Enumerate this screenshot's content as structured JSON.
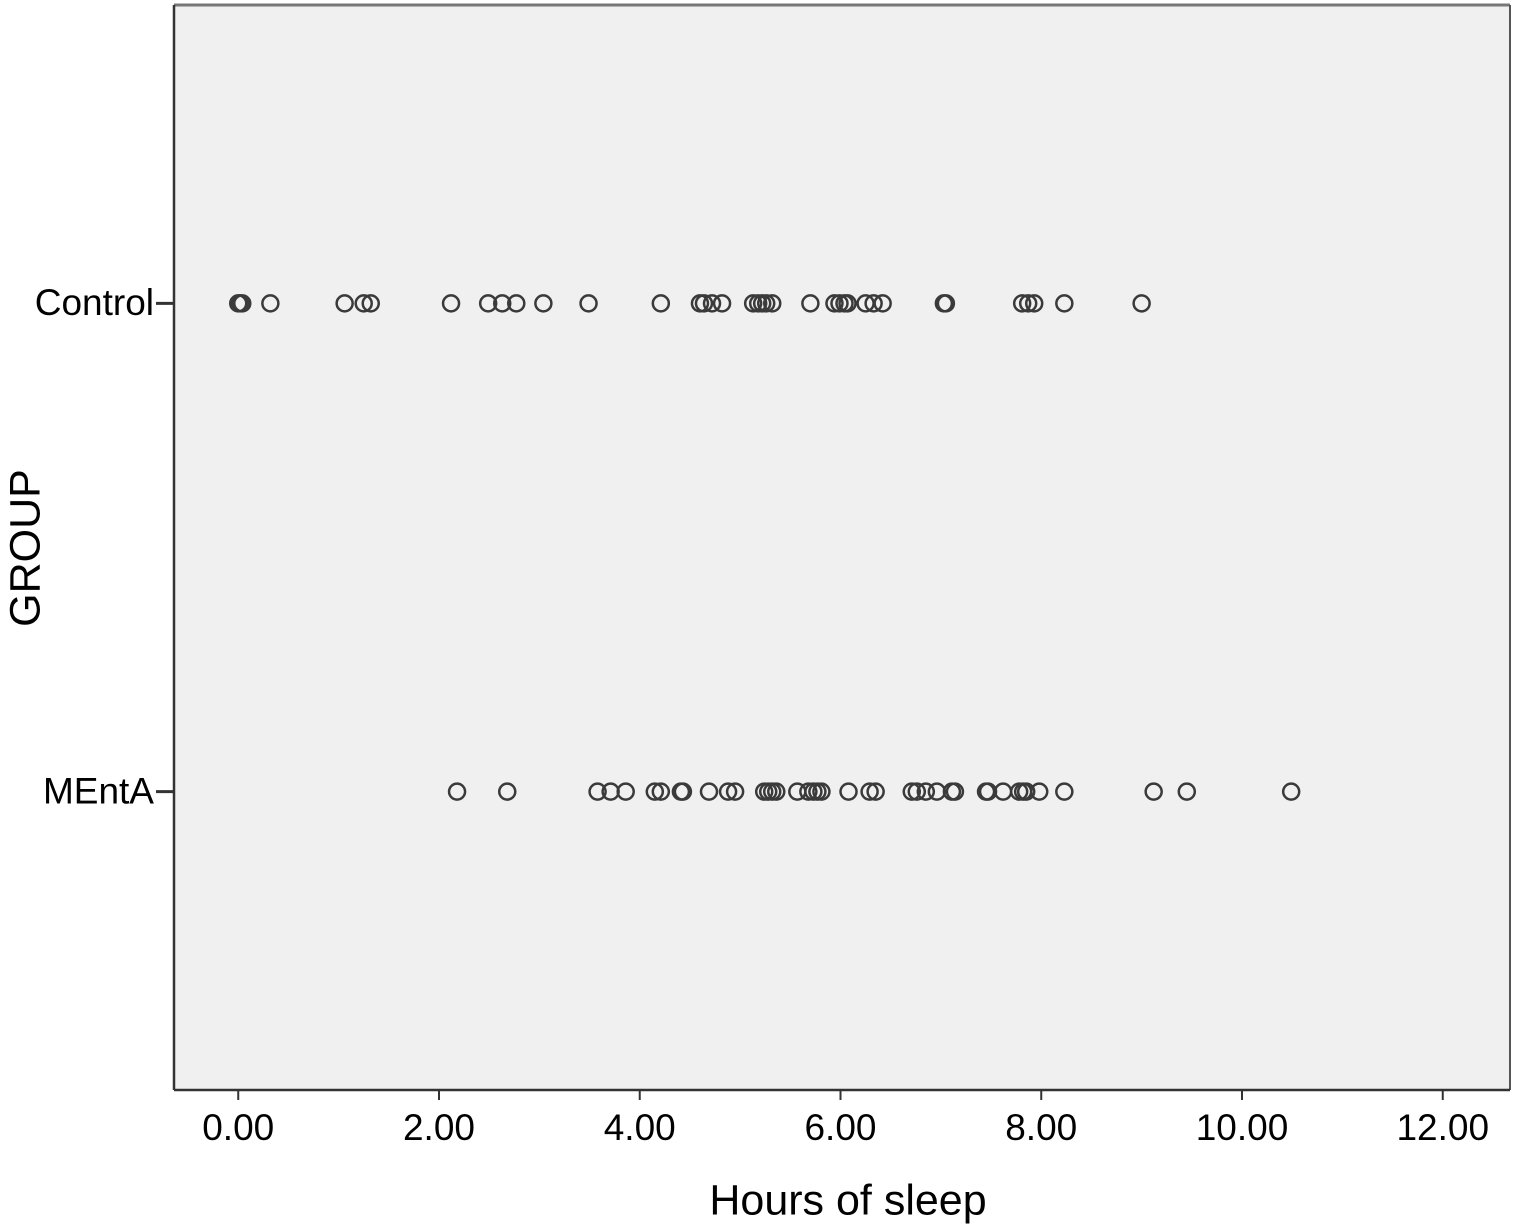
{
  "chart_data": {
    "type": "strip",
    "xlabel": "Hours of sleep",
    "ylabel": "GROUP",
    "xlim": [
      -0.64,
      12.67
    ],
    "xticks": [
      {
        "value": 0,
        "label": "0.00"
      },
      {
        "value": 2,
        "label": "2.00"
      },
      {
        "value": 4,
        "label": "4.00"
      },
      {
        "value": 6,
        "label": "6.00"
      },
      {
        "value": 8,
        "label": "8.00"
      },
      {
        "value": 10,
        "label": "10.00"
      },
      {
        "value": 12,
        "label": "12.00"
      }
    ],
    "grid": false,
    "color": "#3a3a3a",
    "series": [
      {
        "name": "Control",
        "values": [
          0.0,
          0.02,
          0.04,
          0.32,
          1.06,
          1.25,
          1.32,
          2.12,
          2.49,
          2.63,
          2.77,
          3.04,
          3.49,
          4.21,
          4.6,
          4.64,
          4.72,
          4.82,
          5.13,
          5.18,
          5.22,
          5.26,
          5.32,
          5.7,
          5.94,
          5.99,
          6.04,
          6.07,
          6.25,
          6.33,
          6.42,
          7.03,
          7.05,
          7.81,
          7.87,
          7.93,
          8.23,
          9.0
        ]
      },
      {
        "name": "MEntA",
        "values": [
          2.18,
          2.68,
          3.58,
          3.71,
          3.86,
          4.15,
          4.21,
          4.41,
          4.43,
          4.69,
          4.88,
          4.95,
          5.24,
          5.28,
          5.32,
          5.36,
          5.57,
          5.68,
          5.73,
          5.77,
          5.81,
          6.08,
          6.29,
          6.35,
          6.71,
          6.76,
          6.85,
          6.96,
          7.11,
          7.14,
          7.45,
          7.47,
          7.62,
          7.78,
          7.82,
          7.85,
          7.98,
          8.23,
          9.12,
          9.45,
          10.49
        ]
      }
    ]
  }
}
